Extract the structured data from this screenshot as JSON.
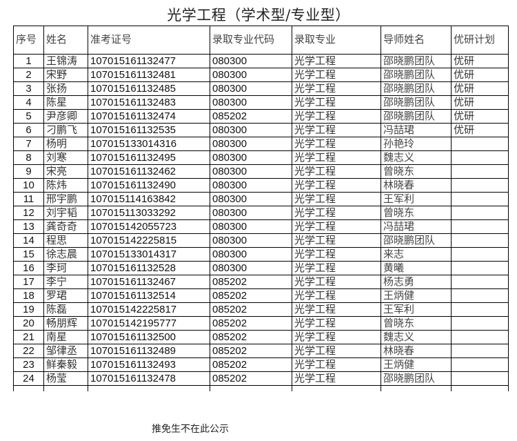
{
  "title": "光学工程（学术型/专业型）",
  "headers": [
    "序号",
    "姓名",
    "准考证号",
    "录取专业代码",
    "录取专业",
    "导师姓名",
    "优研计划"
  ],
  "rows": [
    [
      "1",
      "王锦涛",
      "107015161132477",
      "080300",
      "光学工程",
      "邵晓鹏团队",
      "优研"
    ],
    [
      "2",
      "宋野",
      "107015161132481",
      "080300",
      "光学工程",
      "邵晓鹏团队",
      "优研"
    ],
    [
      "3",
      "张扬",
      "107015161132485",
      "080300",
      "光学工程",
      "邵晓鹏团队",
      "优研"
    ],
    [
      "4",
      "陈星",
      "107015161132483",
      "080300",
      "光学工程",
      "邵晓鹏团队",
      "优研"
    ],
    [
      "5",
      "尹彦卿",
      "107015161132474",
      "085202",
      "光学工程",
      "邵晓鹏团队",
      "优研"
    ],
    [
      "6",
      "刁鹏飞",
      "107015161132535",
      "080300",
      "光学工程",
      "冯喆珺",
      "优研"
    ],
    [
      "7",
      "杨明",
      "107015133014316",
      "080300",
      "光学工程",
      "孙艳玲",
      ""
    ],
    [
      "8",
      "刘寒",
      "107015161132495",
      "080300",
      "光学工程",
      "魏志义",
      ""
    ],
    [
      "9",
      "宋亮",
      "107015161132462",
      "080300",
      "光学工程",
      "曾晓东",
      ""
    ],
    [
      "10",
      "陈炜",
      "107015161132490",
      "080300",
      "光学工程",
      "林晓春",
      ""
    ],
    [
      "11",
      "邢宇鹏",
      "107015114163842",
      "080300",
      "光学工程",
      "王军利",
      ""
    ],
    [
      "12",
      "刘宇韬",
      "107015113033292",
      "080300",
      "光学工程",
      "曾晓东",
      ""
    ],
    [
      "13",
      "龚奇奇",
      "107015142055723",
      "080300",
      "光学工程",
      "冯喆珺",
      ""
    ],
    [
      "14",
      "程思",
      "107015142225815",
      "080300",
      "光学工程",
      "邵晓鹏团队",
      ""
    ],
    [
      "15",
      "徐志晨",
      "107015133014317",
      "080300",
      "光学工程",
      "来志",
      ""
    ],
    [
      "16",
      "李珂",
      "107015161132528",
      "080300",
      "光学工程",
      "黄曦",
      ""
    ],
    [
      "17",
      "李宁",
      "107015161132467",
      "085202",
      "光学工程",
      "杨志勇",
      ""
    ],
    [
      "18",
      "罗珺",
      "107015161132514",
      "085202",
      "光学工程",
      "王炳健",
      ""
    ],
    [
      "19",
      "陈磊",
      "107015142225817",
      "085202",
      "光学工程",
      "王军利",
      ""
    ],
    [
      "20",
      "畅朋辉",
      "107015142195777",
      "085202",
      "光学工程",
      "曾晓东",
      ""
    ],
    [
      "21",
      "南星",
      "107015161132500",
      "085202",
      "光学工程",
      "魏志义",
      ""
    ],
    [
      "22",
      "邹律丞",
      "107015161132489",
      "085202",
      "光学工程",
      "林晓春",
      ""
    ],
    [
      "23",
      "鲜秦毅",
      "107015161132493",
      "085202",
      "光学工程",
      "王炳健",
      ""
    ],
    [
      "24",
      "杨莹",
      "107015161132478",
      "085202",
      "光学工程",
      "邵晓鹏团队",
      ""
    ]
  ],
  "footer": "推免生不在此公示"
}
